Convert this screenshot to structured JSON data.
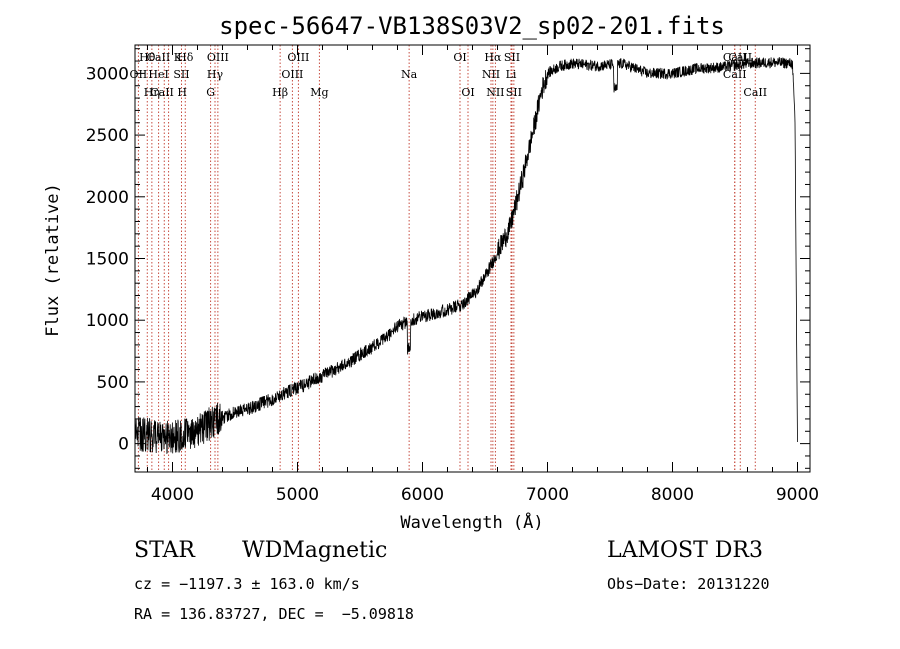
{
  "chart_data": {
    "type": "line",
    "title": "spec-56647-VB138S03V2_sp02-201.fits",
    "xlabel": "Wavelength (Å)",
    "ylabel": "Flux (relative)",
    "xlim": [
      3700,
      9100
    ],
    "ylim": [
      -230,
      3230
    ],
    "xticks": [
      4000,
      5000,
      6000,
      7000,
      8000,
      9000
    ],
    "yticks": [
      0,
      500,
      1000,
      1500,
      2000,
      2500,
      3000
    ],
    "spectrum_knots": [
      [
        3700,
        80
      ],
      [
        3900,
        60
      ],
      [
        4000,
        50
      ],
      [
        4100,
        70
      ],
      [
        4200,
        110
      ],
      [
        4300,
        160
      ],
      [
        4400,
        210
      ],
      [
        4500,
        250
      ],
      [
        4600,
        280
      ],
      [
        4700,
        320
      ],
      [
        4800,
        360
      ],
      [
        4900,
        410
      ],
      [
        5000,
        450
      ],
      [
        5100,
        500
      ],
      [
        5200,
        550
      ],
      [
        5300,
        600
      ],
      [
        5400,
        650
      ],
      [
        5500,
        720
      ],
      [
        5600,
        780
      ],
      [
        5700,
        850
      ],
      [
        5800,
        950
      ],
      [
        5900,
        1000
      ],
      [
        6000,
        1030
      ],
      [
        6100,
        1060
      ],
      [
        6200,
        1080
      ],
      [
        6300,
        1120
      ],
      [
        6400,
        1200
      ],
      [
        6500,
        1350
      ],
      [
        6600,
        1550
      ],
      [
        6700,
        1750
      ],
      [
        6800,
        2150
      ],
      [
        6900,
        2600
      ],
      [
        6950,
        2850
      ],
      [
        7000,
        3000
      ],
      [
        7100,
        3060
      ],
      [
        7200,
        3080
      ],
      [
        7400,
        3060
      ],
      [
        7600,
        3080
      ],
      [
        7800,
        3000
      ],
      [
        8000,
        3000
      ],
      [
        8200,
        3040
      ],
      [
        8400,
        3050
      ],
      [
        8600,
        3080
      ],
      [
        8800,
        3090
      ],
      [
        8960,
        3080
      ],
      [
        8980,
        2600
      ],
      [
        8995,
        600
      ],
      [
        9000,
        0
      ]
    ],
    "lines": [
      {
        "label": "Hθ",
        "wave": 3798,
        "row": 1
      },
      {
        "label": "OII",
        "wave": 3727,
        "row": 2
      },
      {
        "label": "Hη",
        "wave": 3835,
        "row": 3
      },
      {
        "label": "CaII K",
        "wave": 3934,
        "row": 1
      },
      {
        "label": "HeI",
        "wave": 3889,
        "row": 2
      },
      {
        "label": "CaII H",
        "wave": 3969,
        "row": 3
      },
      {
        "label": "SII",
        "wave": 4072,
        "row": 2
      },
      {
        "label": "Hδ",
        "wave": 4102,
        "row": 1
      },
      {
        "label": "OIII",
        "wave": 4363,
        "row": 1
      },
      {
        "label": "Hγ",
        "wave": 4340,
        "row": 2
      },
      {
        "label": "G",
        "wave": 4305,
        "row": 3
      },
      {
        "label": "Hβ",
        "wave": 4861,
        "row": 3
      },
      {
        "label": "OIII",
        "wave": 5007,
        "row": 1
      },
      {
        "label": "OIII",
        "wave": 4959,
        "row": 2
      },
      {
        "label": "Mg",
        "wave": 5175,
        "row": 3
      },
      {
        "label": "Na",
        "wave": 5893,
        "row": 2
      },
      {
        "label": "OI",
        "wave": 6300,
        "row": 1
      },
      {
        "label": "OI",
        "wave": 6364,
        "row": 3
      },
      {
        "label": "Hα",
        "wave": 6563,
        "row": 1
      },
      {
        "label": "NII",
        "wave": 6548,
        "row": 2
      },
      {
        "label": "NII",
        "wave": 6583,
        "row": 3
      },
      {
        "label": "SII",
        "wave": 6716,
        "row": 1
      },
      {
        "label": "Li",
        "wave": 6708,
        "row": 2
      },
      {
        "label": "SII",
        "wave": 6731,
        "row": 3
      },
      {
        "label": "CaII",
        "wave": 8498,
        "row": 1
      },
      {
        "label": "CaII",
        "wave": 8542,
        "row": 1
      },
      {
        "label": "CaII",
        "wave": 8498,
        "row": 2
      },
      {
        "label": "CaII",
        "wave": 8662,
        "row": 3
      }
    ]
  },
  "info": {
    "object_class": "STAR",
    "subclass": "WDMagnetic",
    "survey": "LAMOST DR3",
    "cz_text": "cz = −1197.3 ± 163.0 km/s",
    "obs_date_text": "Obs−Date: 20131220",
    "radec_text": "RA = 136.83727, DEC =  −5.09818"
  }
}
